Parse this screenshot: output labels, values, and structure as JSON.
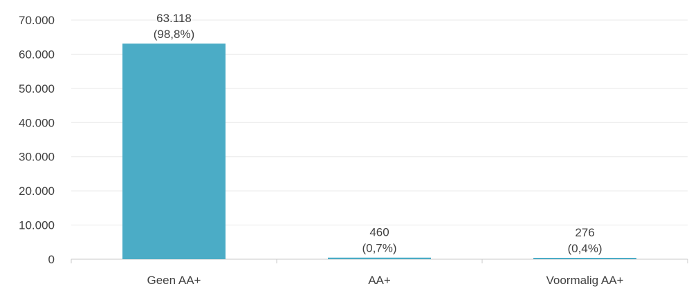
{
  "chart_data": {
    "type": "bar",
    "categories": [
      "Geen AA+",
      "AA+",
      "Voormalig AA+"
    ],
    "values": [
      63118,
      460,
      276
    ],
    "data_labels": [
      {
        "value_text": "63.118",
        "pct_text": "(98,8%)"
      },
      {
        "value_text": "460",
        "pct_text": "(0,7%)"
      },
      {
        "value_text": "276",
        "pct_text": "(0,4%)"
      }
    ],
    "yticks": [
      0,
      10000,
      20000,
      30000,
      40000,
      50000,
      60000,
      70000
    ],
    "ytick_labels": [
      "0",
      "10.000",
      "20.000",
      "30.000",
      "40.000",
      "50.000",
      "60.000",
      "70.000"
    ],
    "ylim": [
      0,
      70000
    ],
    "title": "",
    "xlabel": "",
    "ylabel": "",
    "grid": true,
    "legend": "none",
    "colors": {
      "bar": "#4BACC6",
      "grid": "#E8E8E8",
      "axis": "#C8C8C8",
      "text": "#404040"
    }
  }
}
